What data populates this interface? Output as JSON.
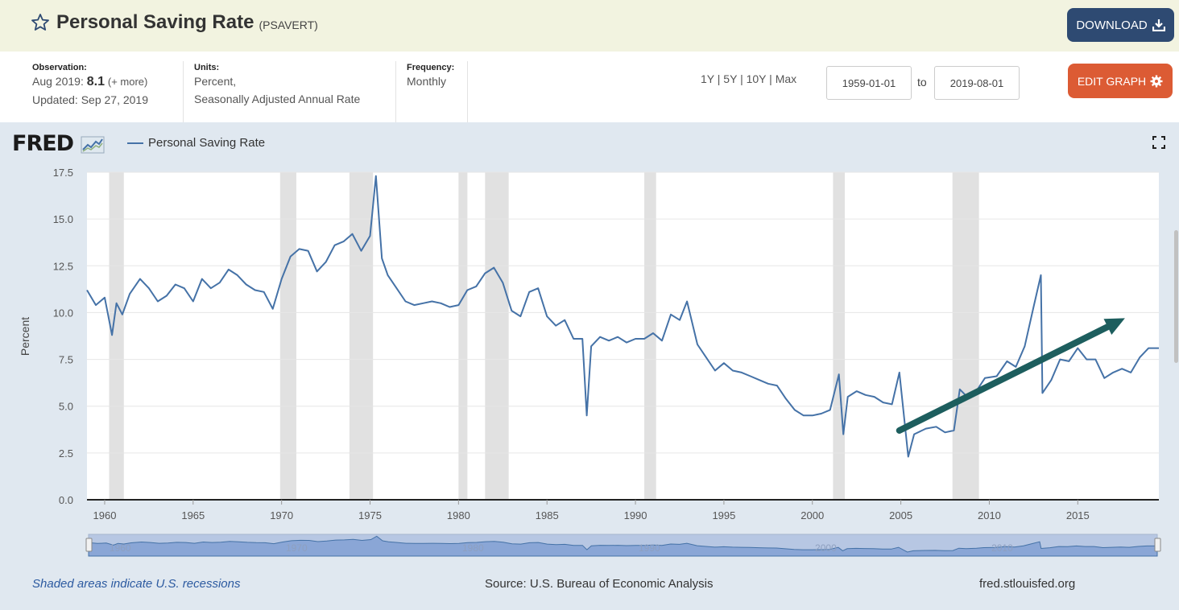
{
  "header": {
    "title": "Personal Saving Rate",
    "series_id": "(PSAVERT)",
    "download_label": "DOWNLOAD"
  },
  "meta": {
    "observation_label": "Observation:",
    "observation_date": "Aug 2019:",
    "observation_value": "8.1",
    "observation_more": "(+ more)",
    "updated": "Updated: Sep 27, 2019",
    "units_label": "Units:",
    "units_line1": "Percent,",
    "units_line2": "Seasonally Adjusted Annual Rate",
    "frequency_label": "Frequency:",
    "frequency_value": "Monthly",
    "range_1y": "1Y",
    "range_5y": "5Y",
    "range_10y": "10Y",
    "range_max": "Max",
    "range_sep": "|",
    "start_date": "1959-01-01",
    "to_label": "to",
    "end_date": "2019-08-01",
    "edit_label": "EDIT GRAPH"
  },
  "chart_panel": {
    "logo": "FRED",
    "legend_label": "Personal Saving Rate",
    "recession_note": "Shaded areas indicate U.S. recessions",
    "source": "Source: U.S. Bureau of Economic Analysis",
    "site": "fred.stlouisfed.org"
  },
  "colors": {
    "series": "#4572a7",
    "recession": "#e1e1e1",
    "arrow": "#1d5e5e",
    "download_button": "#2e4a72",
    "edit_button": "#dc5b34",
    "header_bg": "#f2f3e0",
    "panel_bg": "#e0e8f0"
  },
  "chart_data": {
    "type": "line",
    "title": "Personal Saving Rate",
    "xlabel": "",
    "ylabel": "Percent",
    "xlim": [
      "1959-01",
      "2019-08"
    ],
    "ylim": [
      0,
      17.5
    ],
    "y_ticks": [
      "0.0",
      "2.5",
      "5.0",
      "7.5",
      "10.0",
      "12.5",
      "15.0",
      "17.5"
    ],
    "x_ticks": [
      "1960",
      "1965",
      "1970",
      "1975",
      "1980",
      "1985",
      "1990",
      "1995",
      "2000",
      "2005",
      "2010",
      "2015"
    ],
    "grid": "horizontal",
    "legend": "top-left",
    "recessions": [
      [
        "1960-04",
        "1961-02"
      ],
      [
        "1969-12",
        "1970-11"
      ],
      [
        "1973-11",
        "1975-03"
      ],
      [
        "1980-01",
        "1980-07"
      ],
      [
        "1981-07",
        "1982-11"
      ],
      [
        "1990-07",
        "1991-03"
      ],
      [
        "2001-03",
        "2001-11"
      ],
      [
        "2007-12",
        "2009-06"
      ]
    ],
    "series": [
      {
        "name": "Personal Saving Rate",
        "x": [
          "1959-01",
          "1959-07",
          "1960-01",
          "1960-06",
          "1960-09",
          "1961-01",
          "1961-06",
          "1962-01",
          "1962-07",
          "1963-01",
          "1963-07",
          "1964-01",
          "1964-07",
          "1965-01",
          "1965-07",
          "1966-01",
          "1966-07",
          "1967-01",
          "1967-07",
          "1968-01",
          "1968-07",
          "1969-01",
          "1969-07",
          "1970-01",
          "1970-07",
          "1971-01",
          "1971-07",
          "1972-01",
          "1972-07",
          "1973-01",
          "1973-07",
          "1974-01",
          "1974-07",
          "1975-01",
          "1975-05",
          "1975-09",
          "1976-01",
          "1976-07",
          "1977-01",
          "1977-07",
          "1978-01",
          "1978-07",
          "1979-01",
          "1979-07",
          "1980-01",
          "1980-07",
          "1981-01",
          "1981-07",
          "1982-01",
          "1982-07",
          "1983-01",
          "1983-07",
          "1984-01",
          "1984-07",
          "1985-01",
          "1985-07",
          "1986-01",
          "1986-07",
          "1987-01",
          "1987-04",
          "1987-07",
          "1988-01",
          "1988-07",
          "1989-01",
          "1989-07",
          "1990-01",
          "1990-07",
          "1991-01",
          "1991-07",
          "1992-01",
          "1992-07",
          "1992-12",
          "1993-07",
          "1994-01",
          "1994-07",
          "1995-01",
          "1995-07",
          "1996-01",
          "1996-07",
          "1997-01",
          "1997-07",
          "1998-01",
          "1998-07",
          "1999-01",
          "1999-07",
          "2000-01",
          "2000-07",
          "2001-01",
          "2001-07",
          "2001-10",
          "2002-01",
          "2002-07",
          "2003-01",
          "2003-07",
          "2004-01",
          "2004-07",
          "2004-12",
          "2005-06",
          "2005-10",
          "2006-06",
          "2007-01",
          "2007-07",
          "2008-01",
          "2008-05",
          "2008-10",
          "2009-05",
          "2009-10",
          "2010-06",
          "2011-01",
          "2011-07",
          "2012-01",
          "2012-07",
          "2012-12",
          "2013-01",
          "2013-07",
          "2014-01",
          "2014-07",
          "2015-01",
          "2015-07",
          "2016-01",
          "2016-07",
          "2017-01",
          "2017-07",
          "2018-01",
          "2018-07",
          "2019-01",
          "2019-08"
        ],
        "values": [
          11.2,
          10.4,
          10.8,
          8.8,
          10.5,
          9.9,
          11.0,
          11.8,
          11.3,
          10.6,
          10.9,
          11.5,
          11.3,
          10.6,
          11.8,
          11.3,
          11.6,
          12.3,
          12.0,
          11.5,
          11.2,
          11.1,
          10.2,
          11.8,
          13.0,
          13.4,
          13.3,
          12.2,
          12.7,
          13.6,
          13.8,
          14.2,
          13.3,
          14.1,
          17.3,
          12.9,
          12.0,
          11.3,
          10.6,
          10.4,
          10.5,
          10.6,
          10.5,
          10.3,
          10.4,
          11.2,
          11.4,
          12.1,
          12.4,
          11.6,
          10.1,
          9.8,
          11.1,
          11.3,
          9.8,
          9.3,
          9.6,
          8.6,
          8.6,
          4.5,
          8.2,
          8.7,
          8.5,
          8.7,
          8.4,
          8.6,
          8.6,
          8.9,
          8.5,
          9.9,
          9.6,
          10.6,
          8.3,
          7.6,
          6.9,
          7.3,
          6.9,
          6.8,
          6.6,
          6.4,
          6.2,
          6.1,
          5.4,
          4.8,
          4.5,
          4.5,
          4.6,
          4.8,
          6.7,
          3.5,
          5.5,
          5.8,
          5.6,
          5.5,
          5.2,
          5.1,
          6.8,
          2.3,
          3.5,
          3.8,
          3.9,
          3.6,
          3.7,
          5.9,
          5.5,
          5.9,
          6.5,
          6.6,
          7.4,
          7.1,
          8.2,
          10.3,
          12.0,
          5.7,
          6.4,
          7.5,
          7.4,
          8.1,
          7.5,
          7.5,
          6.5,
          6.8,
          7.0,
          6.8,
          7.6,
          8.1,
          8.1
        ]
      }
    ],
    "annotation": {
      "type": "arrow",
      "from": [
        "2004-12",
        3.7
      ],
      "to": [
        "2017-09",
        9.7
      ],
      "label": ""
    }
  }
}
